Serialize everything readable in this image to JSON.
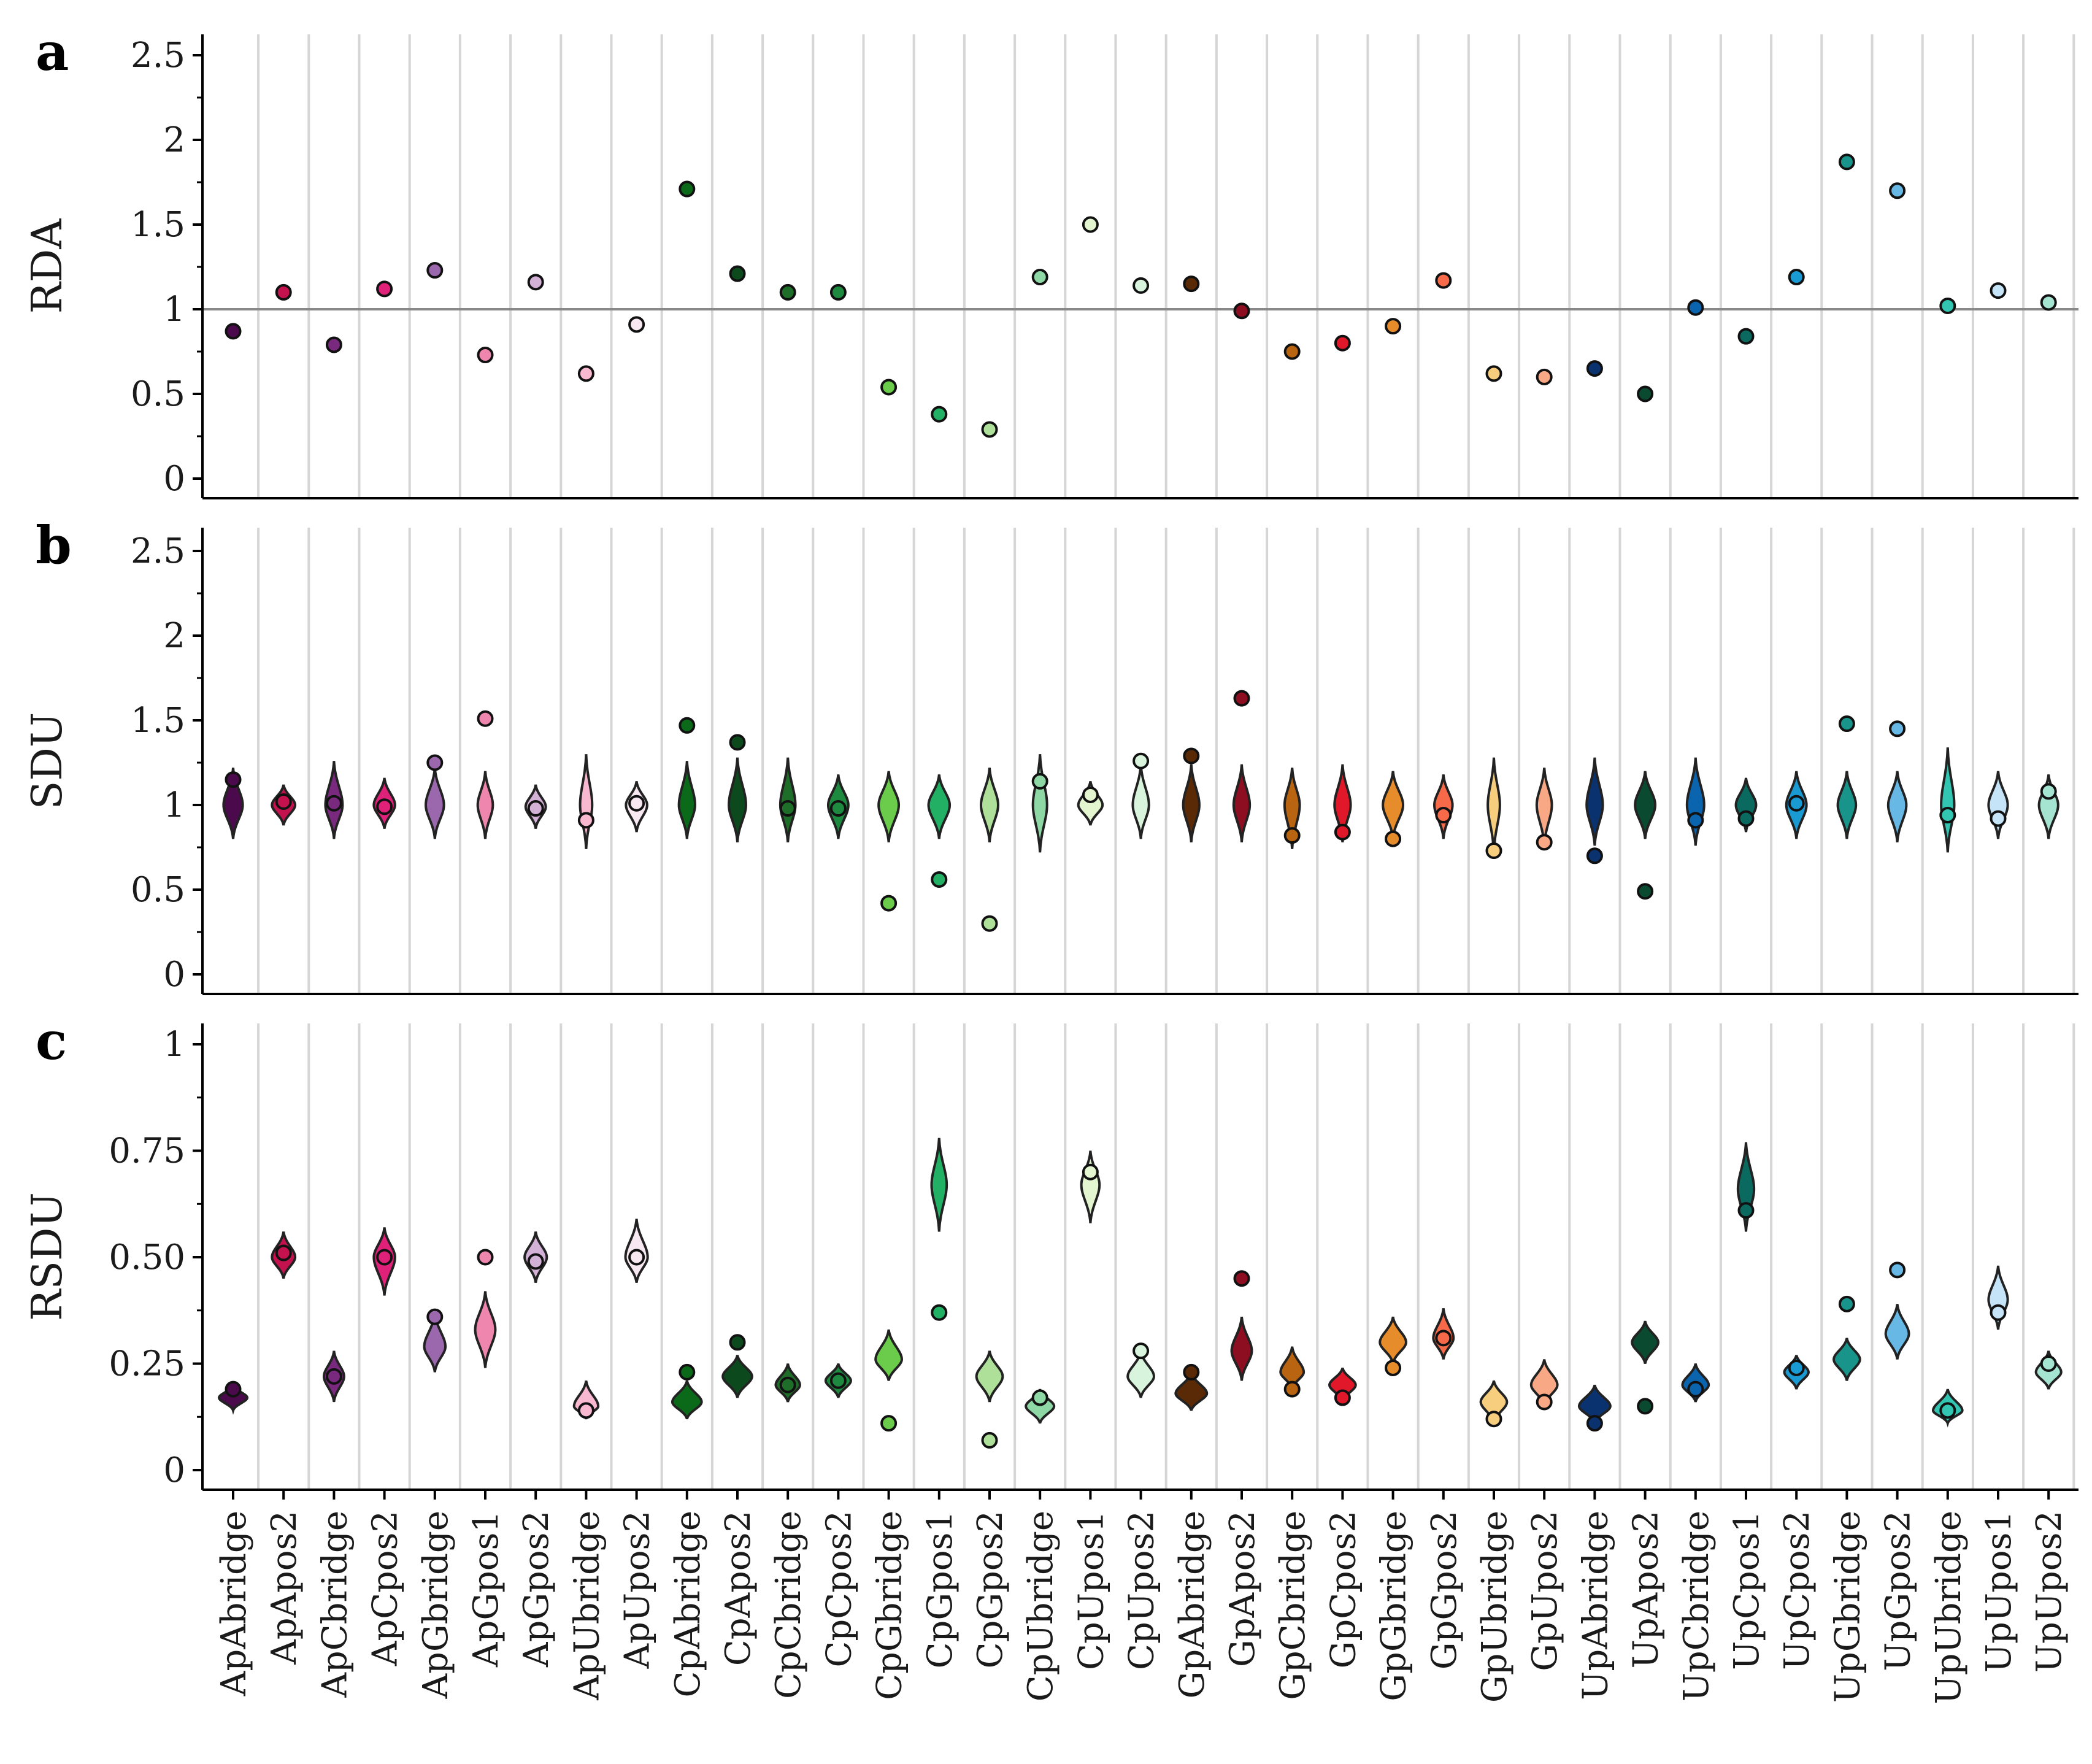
{
  "categories": [
    "ApAbridge",
    "ApApos2",
    "ApCbridge",
    "ApCpos2",
    "ApGbridge",
    "ApGpos1",
    "ApGpos2",
    "ApUbridge",
    "ApUpos2",
    "CpAbridge",
    "CpApos2",
    "CpCbridge",
    "CpCpos2",
    "CpGbridge",
    "CpGpos1",
    "CpGpos2",
    "CpUbridge",
    "CpUpos1",
    "CpUpos2",
    "GpAbridge",
    "GpApos2",
    "GpCbridge",
    "GpCpos2",
    "GpGbridge",
    "GpGpos2",
    "GpUbridge",
    "GpUpos2",
    "UpAbridge",
    "UpApos2",
    "UpCbridge",
    "UpCpos1",
    "UpCpos2",
    "UpGbridge",
    "UpGpos2",
    "UpUbridge",
    "UpUpos1",
    "UpUpos2"
  ],
  "colors": [
    "#4a0a4c",
    "#c4124f",
    "#7a2a7e",
    "#e0217a",
    "#9b68ae",
    "#ef86ae",
    "#d3b0d6",
    "#f8b8d0",
    "#f7e8f2",
    "#0a6a1a",
    "#0c4a1e",
    "#1e6e2a",
    "#1e8a40",
    "#6acc4a",
    "#22b064",
    "#aee09a",
    "#8ed8a6",
    "#e4f6d0",
    "#d8f4dc",
    "#5a2a06",
    "#8c0e20",
    "#b86410",
    "#e0182a",
    "#e68c2a",
    "#f66a4a",
    "#f6ce7e",
    "#f8a884",
    "#0a326e",
    "#0a4a30",
    "#0a64ae",
    "#0a6a60",
    "#1a9ad2",
    "#18948a",
    "#68b8e6",
    "#32c6b2",
    "#c6e4f8",
    "#a6e4d2"
  ],
  "chart_data": [
    {
      "type": "scatter",
      "panel": "a",
      "ylabel": "RDA",
      "ylim": [
        0,
        2.5
      ],
      "yticks": [
        "0",
        "0.5",
        "1",
        "1.5",
        "2",
        "2.5"
      ],
      "reference_line": 1,
      "values": [
        0.87,
        1.1,
        0.79,
        1.12,
        1.23,
        0.73,
        1.16,
        0.62,
        0.91,
        1.71,
        1.21,
        1.1,
        1.1,
        0.54,
        0.38,
        0.29,
        1.19,
        1.5,
        1.14,
        1.15,
        0.99,
        0.75,
        0.8,
        0.9,
        1.17,
        0.62,
        0.6,
        0.65,
        0.5,
        1.01,
        0.84,
        1.19,
        1.87,
        1.7,
        1.02,
        1.11,
        1.04
      ]
    },
    {
      "type": "violin",
      "panel": "b",
      "ylabel": "SDU",
      "ylim": [
        0,
        2.5
      ],
      "yticks": [
        "0",
        "0.5",
        "1",
        "1.5",
        "2",
        "2.5"
      ],
      "violin_center": [
        1.0,
        1.0,
        1.0,
        1.0,
        1.0,
        1.0,
        0.99,
        1.0,
        1.0,
        1.0,
        1.0,
        1.0,
        1.0,
        1.0,
        1.0,
        1.0,
        1.0,
        1.0,
        1.0,
        1.0,
        1.0,
        1.0,
        1.0,
        1.0,
        1.0,
        1.0,
        1.0,
        1.0,
        1.0,
        1.0,
        1.0,
        1.0,
        1.0,
        1.0,
        1.0,
        1.0,
        1.0
      ],
      "violin_range": [
        [
          0.8,
          1.22
        ],
        [
          0.88,
          1.12
        ],
        [
          0.8,
          1.26
        ],
        [
          0.86,
          1.16
        ],
        [
          0.8,
          1.22
        ],
        [
          0.8,
          1.2
        ],
        [
          0.86,
          1.12
        ],
        [
          0.74,
          1.3
        ],
        [
          0.84,
          1.14
        ],
        [
          0.8,
          1.26
        ],
        [
          0.78,
          1.28
        ],
        [
          0.78,
          1.28
        ],
        [
          0.8,
          1.18
        ],
        [
          0.78,
          1.2
        ],
        [
          0.8,
          1.18
        ],
        [
          0.78,
          1.22
        ],
        [
          0.72,
          1.3
        ],
        [
          0.88,
          1.14
        ],
        [
          0.8,
          1.24
        ],
        [
          0.78,
          1.24
        ],
        [
          0.78,
          1.24
        ],
        [
          0.74,
          1.22
        ],
        [
          0.78,
          1.24
        ],
        [
          0.8,
          1.2
        ],
        [
          0.8,
          1.18
        ],
        [
          0.72,
          1.28
        ],
        [
          0.76,
          1.22
        ],
        [
          0.76,
          1.28
        ],
        [
          0.8,
          1.2
        ],
        [
          0.76,
          1.28
        ],
        [
          0.84,
          1.16
        ],
        [
          0.8,
          1.2
        ],
        [
          0.8,
          1.2
        ],
        [
          0.78,
          1.2
        ],
        [
          0.72,
          1.34
        ],
        [
          0.8,
          1.2
        ],
        [
          0.8,
          1.18
        ]
      ],
      "violin_width": [
        0.38,
        0.46,
        0.34,
        0.42,
        0.36,
        0.3,
        0.4,
        0.24,
        0.42,
        0.32,
        0.34,
        0.3,
        0.4,
        0.4,
        0.42,
        0.34,
        0.28,
        0.48,
        0.32,
        0.32,
        0.32,
        0.3,
        0.32,
        0.4,
        0.36,
        0.24,
        0.3,
        0.32,
        0.4,
        0.34,
        0.4,
        0.4,
        0.36,
        0.36,
        0.26,
        0.38,
        0.38
      ],
      "values": [
        1.15,
        1.02,
        1.01,
        0.99,
        1.25,
        1.51,
        0.98,
        0.91,
        1.01,
        1.47,
        1.37,
        0.98,
        0.98,
        0.42,
        0.56,
        0.3,
        1.14,
        1.06,
        1.26,
        1.29,
        1.63,
        0.82,
        0.84,
        0.8,
        0.94,
        0.73,
        0.78,
        0.7,
        0.49,
        0.91,
        0.92,
        1.01,
        1.48,
        1.45,
        0.94,
        0.92,
        1.08
      ]
    },
    {
      "type": "violin",
      "panel": "c",
      "ylabel": "RSDU",
      "ylim": [
        0,
        1
      ],
      "yticks": [
        "0",
        "0.25",
        "0.50",
        "0.75",
        "1"
      ],
      "violin_center": [
        0.17,
        0.5,
        0.22,
        0.5,
        0.29,
        0.33,
        0.5,
        0.15,
        0.5,
        0.16,
        0.22,
        0.2,
        0.21,
        0.26,
        0.67,
        0.22,
        0.15,
        0.67,
        0.22,
        0.18,
        0.28,
        0.23,
        0.2,
        0.3,
        0.31,
        0.16,
        0.2,
        0.15,
        0.3,
        0.2,
        0.66,
        0.23,
        0.26,
        0.32,
        0.14,
        0.4,
        0.23
      ],
      "violin_range": [
        [
          0.14,
          0.2
        ],
        [
          0.45,
          0.56
        ],
        [
          0.16,
          0.28
        ],
        [
          0.41,
          0.57
        ],
        [
          0.23,
          0.37
        ],
        [
          0.24,
          0.42
        ],
        [
          0.44,
          0.56
        ],
        [
          0.12,
          0.21
        ],
        [
          0.44,
          0.59
        ],
        [
          0.12,
          0.21
        ],
        [
          0.17,
          0.27
        ],
        [
          0.16,
          0.25
        ],
        [
          0.17,
          0.25
        ],
        [
          0.21,
          0.33
        ],
        [
          0.56,
          0.78
        ],
        [
          0.16,
          0.28
        ],
        [
          0.11,
          0.19
        ],
        [
          0.58,
          0.75
        ],
        [
          0.17,
          0.28
        ],
        [
          0.14,
          0.23
        ],
        [
          0.21,
          0.36
        ],
        [
          0.19,
          0.29
        ],
        [
          0.16,
          0.24
        ],
        [
          0.25,
          0.36
        ],
        [
          0.26,
          0.38
        ],
        [
          0.11,
          0.21
        ],
        [
          0.15,
          0.26
        ],
        [
          0.11,
          0.2
        ],
        [
          0.25,
          0.35
        ],
        [
          0.16,
          0.25
        ],
        [
          0.56,
          0.77
        ],
        [
          0.19,
          0.27
        ],
        [
          0.21,
          0.31
        ],
        [
          0.26,
          0.39
        ],
        [
          0.11,
          0.19
        ],
        [
          0.33,
          0.48
        ],
        [
          0.19,
          0.28
        ]
      ],
      "violin_width": [
        0.56,
        0.46,
        0.4,
        0.42,
        0.42,
        0.4,
        0.44,
        0.48,
        0.44,
        0.58,
        0.58,
        0.48,
        0.5,
        0.52,
        0.3,
        0.52,
        0.56,
        0.36,
        0.52,
        0.62,
        0.4,
        0.46,
        0.52,
        0.52,
        0.4,
        0.52,
        0.52,
        0.62,
        0.52,
        0.52,
        0.32,
        0.48,
        0.52,
        0.46,
        0.58,
        0.38,
        0.5
      ],
      "values": [
        0.19,
        0.51,
        0.22,
        0.5,
        0.36,
        0.5,
        0.49,
        0.14,
        0.5,
        0.23,
        0.3,
        0.2,
        0.21,
        0.11,
        0.37,
        0.07,
        0.17,
        0.7,
        0.28,
        0.23,
        0.45,
        0.19,
        0.17,
        0.24,
        0.31,
        0.12,
        0.16,
        0.11,
        0.15,
        0.19,
        0.61,
        0.24,
        0.39,
        0.47,
        0.14,
        0.37,
        0.25
      ]
    }
  ]
}
